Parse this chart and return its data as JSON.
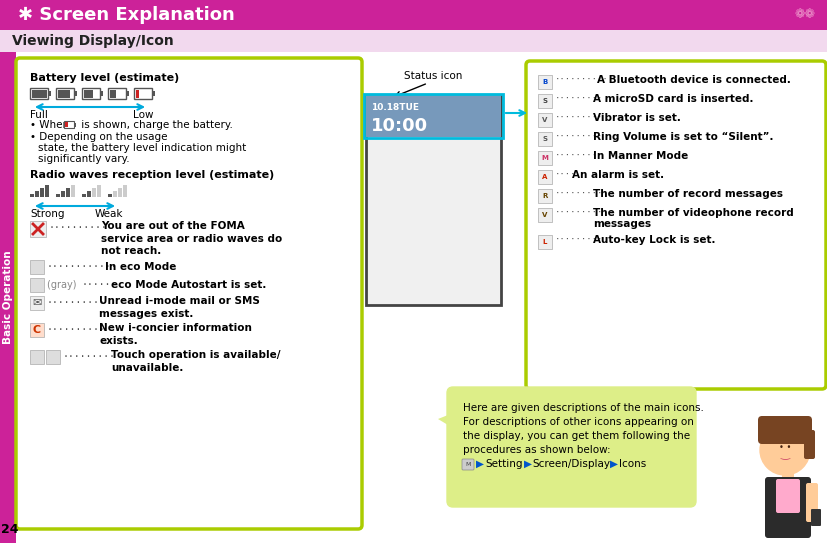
{
  "title": "Screen Explanation",
  "subtitle": "Viewing Display/Icon",
  "title_bg": "#CC2299",
  "subtitle_bg": "#F2D9EE",
  "title_color": "#FFFFFF",
  "subtitle_color": "#333333",
  "left_box_border": "#AACC00",
  "right_box_border": "#AACC00",
  "speech_bubble_bg": "#DDEE88",
  "page_bg": "#FFFFFF",
  "page_number": "24",
  "sidebar_color": "#CC2299",
  "sidebar_text": "Basic Operation",
  "status_label": "Status icon",
  "phone_date": "10.18TUE",
  "phone_time": "10:00",
  "left_items": [
    {
      "dots": "············",
      "text": "In eco Mode",
      "gray_prefix": ""
    },
    {
      "dots": "······",
      "text": "eco Mode Autostart is set.",
      "gray_prefix": "(gray) "
    },
    {
      "dots": "··········",
      "text": "Unread i-mode mail or SMS\nmessages exist.",
      "gray_prefix": ""
    },
    {
      "dots": "··········",
      "text": "New i-concier information\nexists.",
      "gray_prefix": ""
    },
    {
      "dots": "·········",
      "text": "Touch operation is available/\nunavailable.",
      "gray_prefix": ""
    }
  ],
  "right_items": [
    {
      "dots": "··········",
      "text": "A Bluetooth device is connected."
    },
    {
      "dots": "·········",
      "text": "A microSD card is inserted."
    },
    {
      "dots": "·········",
      "text": "Vibrator is set."
    },
    {
      "dots": "·········",
      "text": "Ring Volume is set to “Silent”."
    },
    {
      "dots": "·········",
      "text": "In Manner Mode"
    },
    {
      "dots": "····",
      "text": "An alarm is set."
    },
    {
      "dots": "·········",
      "text": "The number of record messages"
    },
    {
      "dots": "·········",
      "text": "The number of videophone record\nmessages"
    },
    {
      "dots": "·········",
      "text": "Auto-key Lock is set."
    }
  ],
  "speech_text_lines": [
    "Here are given descriptions of the main icons.",
    "For descriptions of other icons appearing on",
    "the display, you can get them following the",
    "procedures as shown below:"
  ],
  "speech_nav": "▶Setting▶Screen/Display▶Icons"
}
